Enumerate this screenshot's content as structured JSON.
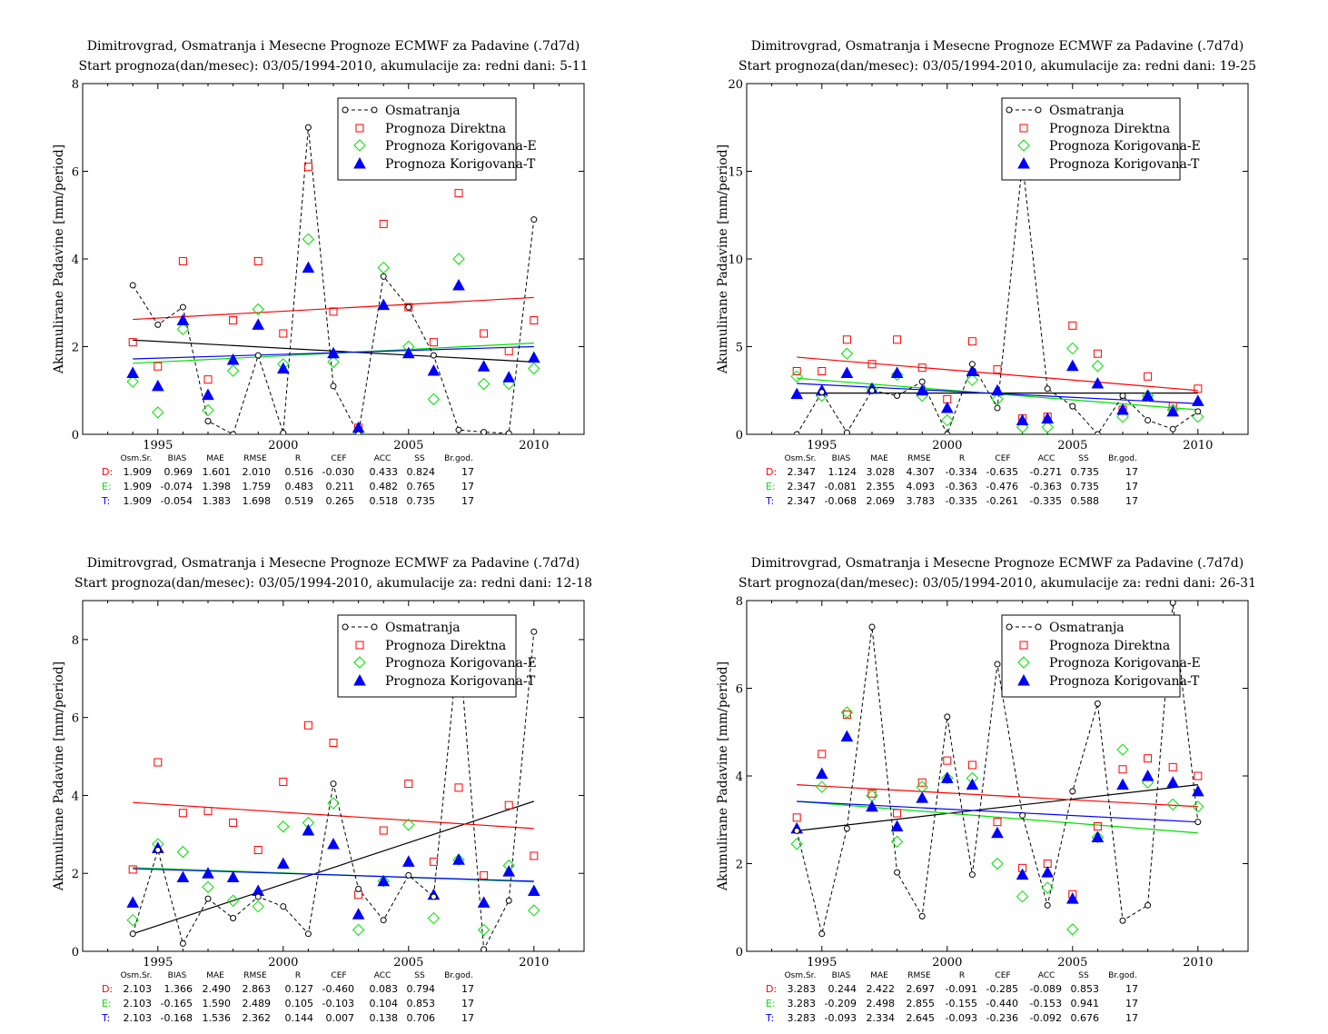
{
  "colors": {
    "observed": "#000000",
    "direct": "#ff0000",
    "corrE": "#00e000",
    "corrT": "#0000ff"
  },
  "legend": [
    "Osmatranja",
    "Prognoza Direktna",
    "Prognoza Korigovana-E",
    "Prognoza Korigovana-T"
  ],
  "stats_headers": [
    "Osm.Sr.",
    "BIAS",
    "MAE",
    "RMSE",
    "R",
    "CEF",
    "ACC",
    "SS",
    "Br.god."
  ],
  "chart_data": [
    {
      "type": "scatter",
      "title": "Dimitrovgrad, Osmatranja i Mesecne Prognoze ECMWF za Padavine (.7d7d)",
      "subtitle": "Start prognoza(dan/mesec): 03/05/1994-2010, akumulacije za: redni dani: 5-11",
      "ylabel": "Akumulirane Padavine [mm/period]",
      "xlabel": "",
      "xlim": [
        1992,
        2012
      ],
      "ylim": [
        0,
        8
      ],
      "xticks": [
        1995,
        2000,
        2005,
        2010
      ],
      "yticks": [
        0,
        2,
        4,
        6,
        8
      ],
      "x": [
        1994,
        1995,
        1996,
        1997,
        1998,
        1999,
        2000,
        2001,
        2002,
        2003,
        2004,
        2005,
        2006,
        2007,
        2008,
        2009,
        2010
      ],
      "series": [
        {
          "name": "Osmatranja",
          "values": [
            3.4,
            2.5,
            2.9,
            0.3,
            0.0,
            1.8,
            0.03,
            7.0,
            1.1,
            0.0,
            3.6,
            2.9,
            1.8,
            0.1,
            0.05,
            0.02,
            4.9
          ]
        },
        {
          "name": "Prognoza Direktna",
          "values": [
            2.1,
            1.55,
            3.95,
            1.25,
            2.6,
            3.95,
            2.3,
            6.1,
            2.8,
            0.15,
            4.8,
            2.9,
            2.1,
            5.5,
            2.3,
            1.9,
            2.6
          ]
        },
        {
          "name": "Prognoza Korigovana-E",
          "values": [
            1.2,
            0.5,
            2.4,
            0.55,
            1.45,
            2.85,
            1.6,
            4.45,
            1.65,
            0.0,
            3.8,
            2.0,
            0.8,
            4.0,
            1.15,
            1.15,
            1.5
          ]
        },
        {
          "name": "Prognoza Korigovana-T",
          "values": [
            1.4,
            1.1,
            2.6,
            0.9,
            1.7,
            2.5,
            1.5,
            3.8,
            1.85,
            0.15,
            2.95,
            1.85,
            1.45,
            3.4,
            1.55,
            1.3,
            1.75
          ]
        }
      ],
      "trends": {
        "observed": [
          2.15,
          1.65
        ],
        "direct": [
          2.62,
          3.12
        ],
        "corrE": [
          1.62,
          2.08
        ],
        "corrT": [
          1.72,
          2.0
        ]
      },
      "stats": [
        {
          "label": "D:",
          "values": [
            "1.909",
            "0.969",
            "1.601",
            "2.010",
            "0.516",
            "-0.030",
            "0.433",
            "0.824",
            "17"
          ]
        },
        {
          "label": "E:",
          "values": [
            "1.909",
            "-0.074",
            "1.398",
            "1.759",
            "0.483",
            "0.211",
            "0.482",
            "0.765",
            "17"
          ]
        },
        {
          "label": "T:",
          "values": [
            "1.909",
            "-0.054",
            "1.383",
            "1.698",
            "0.519",
            "0.265",
            "0.518",
            "0.735",
            "17"
          ]
        }
      ]
    },
    {
      "type": "scatter",
      "title": "Dimitrovgrad, Osmatranja i Mesecne Prognoze ECMWF za Padavine (.7d7d)",
      "subtitle": "Start prognoza(dan/mesec): 03/05/1994-2010, akumulacije za: redni dani: 19-25",
      "ylabel": "Akumulirane Padavine [mm/period]",
      "xlabel": "",
      "xlim": [
        1992,
        2012
      ],
      "ylim": [
        0,
        20
      ],
      "xticks": [
        1995,
        2000,
        2005,
        2010
      ],
      "yticks": [
        0,
        5,
        10,
        15,
        20
      ],
      "x": [
        1994,
        1995,
        1996,
        1997,
        1998,
        1999,
        2000,
        2001,
        2002,
        2003,
        2004,
        2005,
        2006,
        2007,
        2008,
        2009,
        2010
      ],
      "series": [
        {
          "name": "Osmatranja",
          "values": [
            0.0,
            2.4,
            0.1,
            2.5,
            2.2,
            3.0,
            0.0,
            4.0,
            1.5,
            15.5,
            2.6,
            1.6,
            0.0,
            2.2,
            0.8,
            0.3,
            1.3
          ]
        },
        {
          "name": "Prognoza Direktna",
          "values": [
            3.6,
            3.6,
            5.4,
            4.0,
            5.4,
            3.8,
            2.0,
            5.3,
            3.7,
            0.9,
            1.0,
            6.2,
            4.6,
            1.4,
            3.3,
            1.6,
            2.6
          ]
        },
        {
          "name": "Prognoza Korigovana-E",
          "values": [
            3.3,
            2.2,
            4.6,
            2.6,
            3.4,
            2.2,
            0.8,
            3.1,
            2.0,
            0.4,
            0.4,
            4.9,
            3.9,
            1.0,
            2.2,
            1.4,
            1.0
          ]
        },
        {
          "name": "Prognoza Korigovana-T",
          "values": [
            2.3,
            2.5,
            3.5,
            2.6,
            3.5,
            2.5,
            1.5,
            3.6,
            2.5,
            0.8,
            0.9,
            3.9,
            2.9,
            1.4,
            2.2,
            1.3,
            1.9
          ]
        }
      ],
      "trends": {
        "observed": [
          2.35,
          2.35
        ],
        "direct": [
          4.4,
          2.5
        ],
        "corrE": [
          3.2,
          1.4
        ],
        "corrT": [
          2.9,
          1.75
        ]
      },
      "stats": [
        {
          "label": "D:",
          "values": [
            "2.347",
            "1.124",
            "3.028",
            "4.307",
            "-0.334",
            "-0.635",
            "-0.271",
            "0.735",
            "17"
          ]
        },
        {
          "label": "E:",
          "values": [
            "2.347",
            "-0.081",
            "2.355",
            "4.093",
            "-0.363",
            "-0.476",
            "-0.363",
            "0.735",
            "17"
          ]
        },
        {
          "label": "T:",
          "values": [
            "2.347",
            "-0.068",
            "2.069",
            "3.783",
            "-0.335",
            "-0.261",
            "-0.335",
            "0.588",
            "17"
          ]
        }
      ]
    },
    {
      "type": "scatter",
      "title": "Dimitrovgrad, Osmatranja i Mesecne Prognoze ECMWF za Padavine (.7d7d)",
      "subtitle": "Start prognoza(dan/mesec): 03/05/1994-2010, akumulacije za: redni dani: 12-18",
      "ylabel": "Akumulirane Padavine [mm/period]",
      "xlabel": "",
      "xlim": [
        1992,
        2012
      ],
      "ylim": [
        0,
        9
      ],
      "xticks": [
        1995,
        2000,
        2005,
        2010
      ],
      "yticks": [
        0,
        2,
        4,
        6,
        8
      ],
      "x": [
        1994,
        1995,
        1996,
        1997,
        1998,
        1999,
        2000,
        2001,
        2002,
        2003,
        2004,
        2005,
        2006,
        2007,
        2008,
        2009,
        2010
      ],
      "series": [
        {
          "name": "Osmatranja",
          "values": [
            0.45,
            2.6,
            0.2,
            1.35,
            0.85,
            1.4,
            1.15,
            0.45,
            4.3,
            1.6,
            0.8,
            1.95,
            1.4,
            8.0,
            0.05,
            1.3,
            8.2
          ]
        },
        {
          "name": "Prognoza Direktna",
          "values": [
            2.1,
            4.85,
            3.55,
            3.6,
            3.3,
            2.6,
            4.35,
            5.8,
            5.35,
            1.45,
            3.1,
            4.3,
            2.3,
            4.2,
            1.95,
            3.75,
            2.45
          ]
        },
        {
          "name": "Prognoza Korigovana-E",
          "values": [
            0.8,
            2.75,
            2.55,
            1.65,
            1.3,
            1.15,
            3.2,
            3.3,
            3.8,
            0.55,
            1.8,
            3.25,
            0.85,
            2.35,
            0.55,
            2.2,
            1.05
          ]
        },
        {
          "name": "Prognoza Korigovana-T",
          "values": [
            1.25,
            2.65,
            1.9,
            2.0,
            1.9,
            1.55,
            2.25,
            3.1,
            2.75,
            0.95,
            1.8,
            2.3,
            1.45,
            2.35,
            1.25,
            2.05,
            1.55
          ]
        }
      ],
      "trends": {
        "observed": [
          0.45,
          3.85
        ],
        "direct": [
          3.82,
          3.15
        ],
        "corrE": [
          2.15,
          1.78
        ],
        "corrT": [
          2.12,
          1.8
        ]
      },
      "stats": [
        {
          "label": "D:",
          "values": [
            "2.103",
            "1.366",
            "2.490",
            "2.863",
            "0.127",
            "-0.460",
            "0.083",
            "0.794",
            "17"
          ]
        },
        {
          "label": "E:",
          "values": [
            "2.103",
            "-0.165",
            "1.590",
            "2.489",
            "0.105",
            "-0.103",
            "0.104",
            "0.853",
            "17"
          ]
        },
        {
          "label": "T:",
          "values": [
            "2.103",
            "-0.168",
            "1.536",
            "2.362",
            "0.144",
            "0.007",
            "0.138",
            "0.706",
            "17"
          ]
        }
      ]
    },
    {
      "type": "scatter",
      "title": "Dimitrovgrad, Osmatranja i Mesecne Prognoze ECMWF za Padavine (.7d7d)",
      "subtitle": "Start prognoza(dan/mesec): 03/05/1994-2010, akumulacije za: redni dani: 26-31",
      "ylabel": "Akumulirane Padavine [mm/period]",
      "xlabel": "",
      "xlim": [
        1992,
        2012
      ],
      "ylim": [
        0,
        8
      ],
      "xticks": [
        1995,
        2000,
        2005,
        2010
      ],
      "yticks": [
        0,
        2,
        4,
        6,
        8
      ],
      "x": [
        1994,
        1995,
        1996,
        1997,
        1998,
        1999,
        2000,
        2001,
        2002,
        2003,
        2004,
        2005,
        2006,
        2007,
        2008,
        2009,
        2010
      ],
      "series": [
        {
          "name": "Osmatranja",
          "values": [
            2.75,
            0.4,
            2.8,
            7.4,
            1.8,
            0.8,
            5.35,
            1.75,
            6.55,
            3.1,
            1.05,
            3.65,
            5.65,
            0.7,
            1.05,
            7.95,
            2.95
          ]
        },
        {
          "name": "Prognoza Direktna",
          "values": [
            3.05,
            4.5,
            5.4,
            3.6,
            3.15,
            3.85,
            4.35,
            4.25,
            2.95,
            1.9,
            2.0,
            1.3,
            2.85,
            4.15,
            4.4,
            4.2,
            4.0
          ]
        },
        {
          "name": "Prognoza Korigovana-E",
          "values": [
            2.45,
            3.75,
            5.45,
            3.55,
            2.5,
            3.75,
            3.95,
            3.95,
            2.0,
            1.25,
            1.45,
            0.5,
            2.6,
            4.6,
            3.85,
            3.35,
            3.3
          ]
        },
        {
          "name": "Prognoza Korigovana-T",
          "values": [
            2.8,
            4.05,
            4.9,
            3.3,
            2.85,
            3.5,
            3.95,
            3.8,
            2.7,
            1.75,
            1.8,
            1.2,
            2.6,
            3.8,
            4.0,
            3.85,
            3.65
          ]
        }
      ],
      "trends": {
        "observed": [
          2.75,
          3.8
        ],
        "direct": [
          3.8,
          3.3
        ],
        "corrE": [
          3.42,
          2.7
        ],
        "corrT": [
          3.42,
          2.95
        ]
      },
      "stats": [
        {
          "label": "D:",
          "values": [
            "3.283",
            "0.244",
            "2.422",
            "2.697",
            "-0.091",
            "-0.285",
            "-0.089",
            "0.853",
            "17"
          ]
        },
        {
          "label": "E:",
          "values": [
            "3.283",
            "-0.209",
            "2.498",
            "2.855",
            "-0.155",
            "-0.440",
            "-0.153",
            "0.941",
            "17"
          ]
        },
        {
          "label": "T:",
          "values": [
            "3.283",
            "-0.093",
            "2.334",
            "2.645",
            "-0.093",
            "-0.236",
            "-0.092",
            "0.676",
            "17"
          ]
        }
      ]
    }
  ]
}
